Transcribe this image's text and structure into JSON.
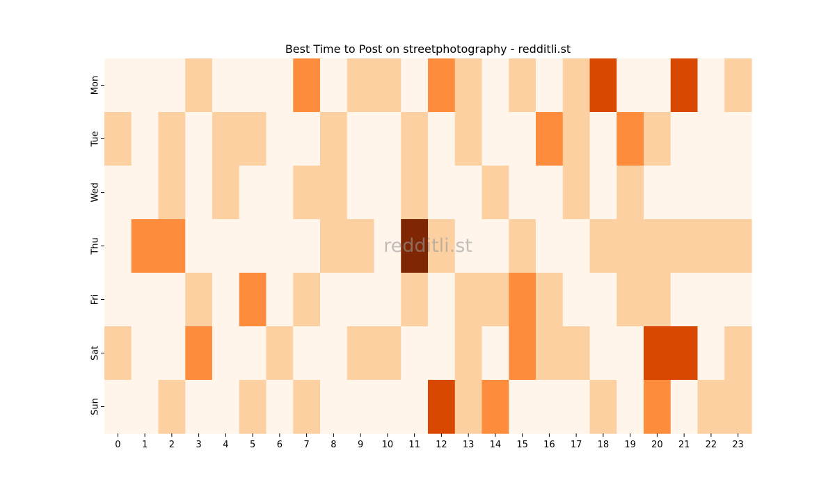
{
  "chart_data": {
    "type": "heatmap",
    "title": "Best Time to Post on streetphotography - redditli.st",
    "watermark": "redditli.st",
    "xlabel": "",
    "ylabel": "",
    "x": [
      "0",
      "1",
      "2",
      "3",
      "4",
      "5",
      "6",
      "7",
      "8",
      "9",
      "10",
      "11",
      "12",
      "13",
      "14",
      "15",
      "16",
      "17",
      "18",
      "19",
      "20",
      "21",
      "22",
      "23"
    ],
    "y": [
      "Mon",
      "Tue",
      "Wed",
      "Thu",
      "Fri",
      "Sat",
      "Sun"
    ],
    "values": [
      [
        0,
        0,
        0,
        1,
        0,
        0,
        0,
        2,
        0,
        1,
        1,
        0,
        2,
        1,
        0,
        1,
        0,
        1,
        3,
        0,
        0,
        3,
        0,
        1
      ],
      [
        1,
        0,
        1,
        0,
        1,
        1,
        0,
        0,
        1,
        0,
        0,
        1,
        0,
        1,
        0,
        0,
        2,
        1,
        0,
        2,
        1,
        0,
        0,
        0
      ],
      [
        0,
        0,
        1,
        0,
        1,
        0,
        0,
        1,
        1,
        0,
        0,
        1,
        0,
        0,
        1,
        0,
        0,
        1,
        0,
        1,
        0,
        0,
        0,
        0
      ],
      [
        0,
        2,
        2,
        0,
        0,
        0,
        0,
        0,
        1,
        1,
        0,
        4,
        1,
        0,
        0,
        1,
        0,
        0,
        1,
        1,
        1,
        1,
        1,
        1
      ],
      [
        0,
        0,
        0,
        1,
        0,
        2,
        0,
        1,
        0,
        0,
        0,
        1,
        0,
        1,
        1,
        2,
        1,
        0,
        0,
        1,
        1,
        0,
        0,
        0
      ],
      [
        1,
        0,
        0,
        2,
        0,
        0,
        1,
        0,
        0,
        1,
        1,
        0,
        0,
        1,
        0,
        2,
        1,
        1,
        0,
        0,
        3,
        3,
        0,
        1
      ],
      [
        0,
        0,
        1,
        0,
        0,
        1,
        0,
        1,
        0,
        0,
        0,
        0,
        3,
        1,
        2,
        0,
        0,
        0,
        1,
        0,
        2,
        0,
        1,
        1
      ]
    ],
    "color_scale": {
      "name": "Oranges",
      "levels": [
        "#fff5eb",
        "#fdd0a2",
        "#fd8d3c",
        "#d94801",
        "#7f2704"
      ]
    },
    "colorbar": false,
    "grid": false
  }
}
